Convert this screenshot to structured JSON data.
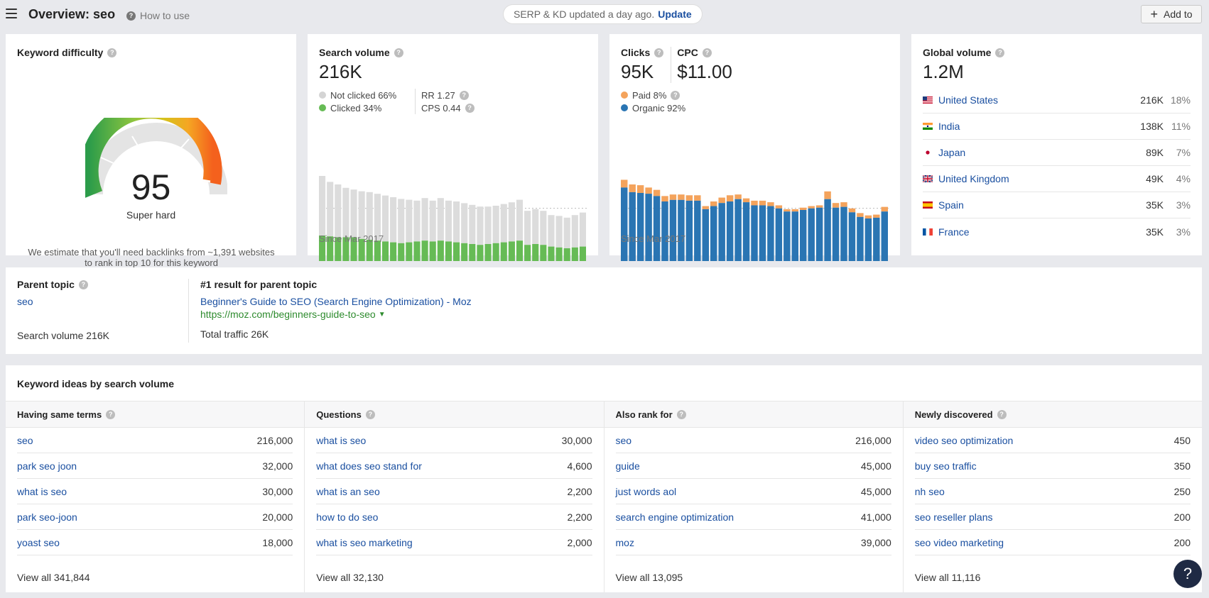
{
  "header": {
    "title": "Overview: seo",
    "how_to_use": "How to use",
    "serp_text": "SERP & KD updated a day ago.",
    "update_label": "Update",
    "add_to_label": "Add to"
  },
  "keyword_difficulty": {
    "title": "Keyword difficulty",
    "value": "95",
    "label": "Super hard",
    "note": "We estimate that you'll need backlinks from ~1,391 websites to rank in top 10 for this keyword"
  },
  "search_volume": {
    "title": "Search volume",
    "value": "216K",
    "not_clicked": "Not clicked 66%",
    "clicked": "Clicked 34%",
    "rr": "RR 1.27",
    "cps": "CPS 0.44",
    "since": "Since Mar 2017",
    "colors": {
      "not_clicked": "#dcdcdc",
      "clicked": "#66bb55"
    }
  },
  "clicks": {
    "clicks_title": "Clicks",
    "clicks_value": "95K",
    "cpc_title": "CPC",
    "cpc_value": "$11.00",
    "paid": "Paid 8%",
    "organic": "Organic 92%",
    "since": "Since Mar 2017",
    "colors": {
      "paid": "#f4a35c",
      "organic": "#2a75b3"
    }
  },
  "global_volume": {
    "title": "Global volume",
    "value": "1.2M",
    "countries": [
      {
        "name": "United States",
        "volume": "216K",
        "pct": "18%",
        "flag": "us-flag-icon"
      },
      {
        "name": "India",
        "volume": "138K",
        "pct": "11%",
        "flag": "in-flag-icon"
      },
      {
        "name": "Japan",
        "volume": "89K",
        "pct": "7%",
        "flag": "jp-flag-icon"
      },
      {
        "name": "United Kingdom",
        "volume": "49K",
        "pct": "4%",
        "flag": "gb-flag-icon"
      },
      {
        "name": "Spain",
        "volume": "35K",
        "pct": "3%",
        "flag": "es-flag-icon"
      },
      {
        "name": "France",
        "volume": "35K",
        "pct": "3%",
        "flag": "fr-flag-icon"
      }
    ]
  },
  "parent_topic": {
    "title": "Parent topic",
    "keyword": "seo",
    "search_volume": "Search volume 216K",
    "result_title": "#1 result for parent topic",
    "result_link": "Beginner's Guide to SEO (Search Engine Optimization) - Moz",
    "result_url": "https://moz.com/beginners-guide-to-seo",
    "total_traffic": "Total traffic 26K"
  },
  "keyword_ideas": {
    "title": "Keyword ideas by search volume",
    "columns": [
      {
        "header": "Having same terms",
        "rows": [
          {
            "kw": "seo",
            "vol": "216,000"
          },
          {
            "kw": "park seo joon",
            "vol": "32,000"
          },
          {
            "kw": "what is seo",
            "vol": "30,000"
          },
          {
            "kw": "park seo-joon",
            "vol": "20,000"
          },
          {
            "kw": "yoast seo",
            "vol": "18,000"
          }
        ],
        "view_all": "View all 341,844"
      },
      {
        "header": "Questions",
        "rows": [
          {
            "kw": "what is seo",
            "vol": "30,000"
          },
          {
            "kw": "what does seo stand for",
            "vol": "4,600"
          },
          {
            "kw": "what is an seo",
            "vol": "2,200"
          },
          {
            "kw": "how to do seo",
            "vol": "2,200"
          },
          {
            "kw": "what is seo marketing",
            "vol": "2,000"
          }
        ],
        "view_all": "View all 32,130"
      },
      {
        "header": "Also rank for",
        "rows": [
          {
            "kw": "seo",
            "vol": "216,000"
          },
          {
            "kw": "guide",
            "vol": "45,000"
          },
          {
            "kw": "just words aol",
            "vol": "45,000"
          },
          {
            "kw": "search engine optimization",
            "vol": "41,000"
          },
          {
            "kw": "moz",
            "vol": "39,000"
          }
        ],
        "view_all": "View all 13,095"
      },
      {
        "header": "Newly discovered",
        "rows": [
          {
            "kw": "video seo optimization",
            "vol": "450"
          },
          {
            "kw": "buy seo traffic",
            "vol": "350"
          },
          {
            "kw": "nh seo",
            "vol": "250"
          },
          {
            "kw": "seo reseller plans",
            "vol": "200"
          },
          {
            "kw": "seo video marketing",
            "vol": "200"
          }
        ],
        "view_all": "View all 11,116"
      }
    ]
  },
  "help_button": "?",
  "chart_data": [
    {
      "type": "bar",
      "title": "Search volume",
      "stacked": true,
      "series": [
        {
          "name": "Clicked",
          "values": [
            30,
            29,
            28,
            28,
            28,
            26,
            25,
            24,
            23,
            22,
            21,
            22,
            23,
            24,
            23,
            24,
            23,
            22,
            21,
            20,
            19,
            20,
            21,
            22,
            23,
            24,
            19,
            20,
            19,
            17,
            16,
            15,
            16,
            17
          ]
        },
        {
          "name": "Not clicked",
          "values": [
            70,
            64,
            62,
            58,
            56,
            56,
            56,
            55,
            54,
            53,
            52,
            50,
            48,
            50,
            48,
            50,
            48,
            48,
            47,
            46,
            45,
            44,
            44,
            45,
            46,
            48,
            40,
            41,
            40,
            37,
            37,
            36,
            38,
            40
          ]
        }
      ],
      "xlabel": "Since Mar 2017",
      "ylim": [
        0,
        100
      ]
    },
    {
      "type": "bar",
      "title": "Clicks",
      "stacked": true,
      "series": [
        {
          "name": "Organic",
          "values": [
            95,
            89,
            88,
            87,
            84,
            77,
            79,
            79,
            78,
            78,
            67,
            71,
            75,
            77,
            80,
            76,
            72,
            72,
            71,
            68,
            64,
            64,
            66,
            68,
            69,
            80,
            69,
            70,
            63,
            57,
            55,
            56,
            64
          ]
        },
        {
          "name": "Paid",
          "values": [
            10,
            10,
            10,
            8,
            8,
            7,
            7,
            7,
            7,
            7,
            4,
            6,
            7,
            8,
            6,
            5,
            6,
            6,
            5,
            4,
            3,
            3,
            3,
            3,
            3,
            10,
            6,
            6,
            5,
            5,
            4,
            4,
            6
          ]
        }
      ],
      "xlabel": "Since Mar 2017",
      "ylim": [
        0,
        110
      ]
    }
  ]
}
